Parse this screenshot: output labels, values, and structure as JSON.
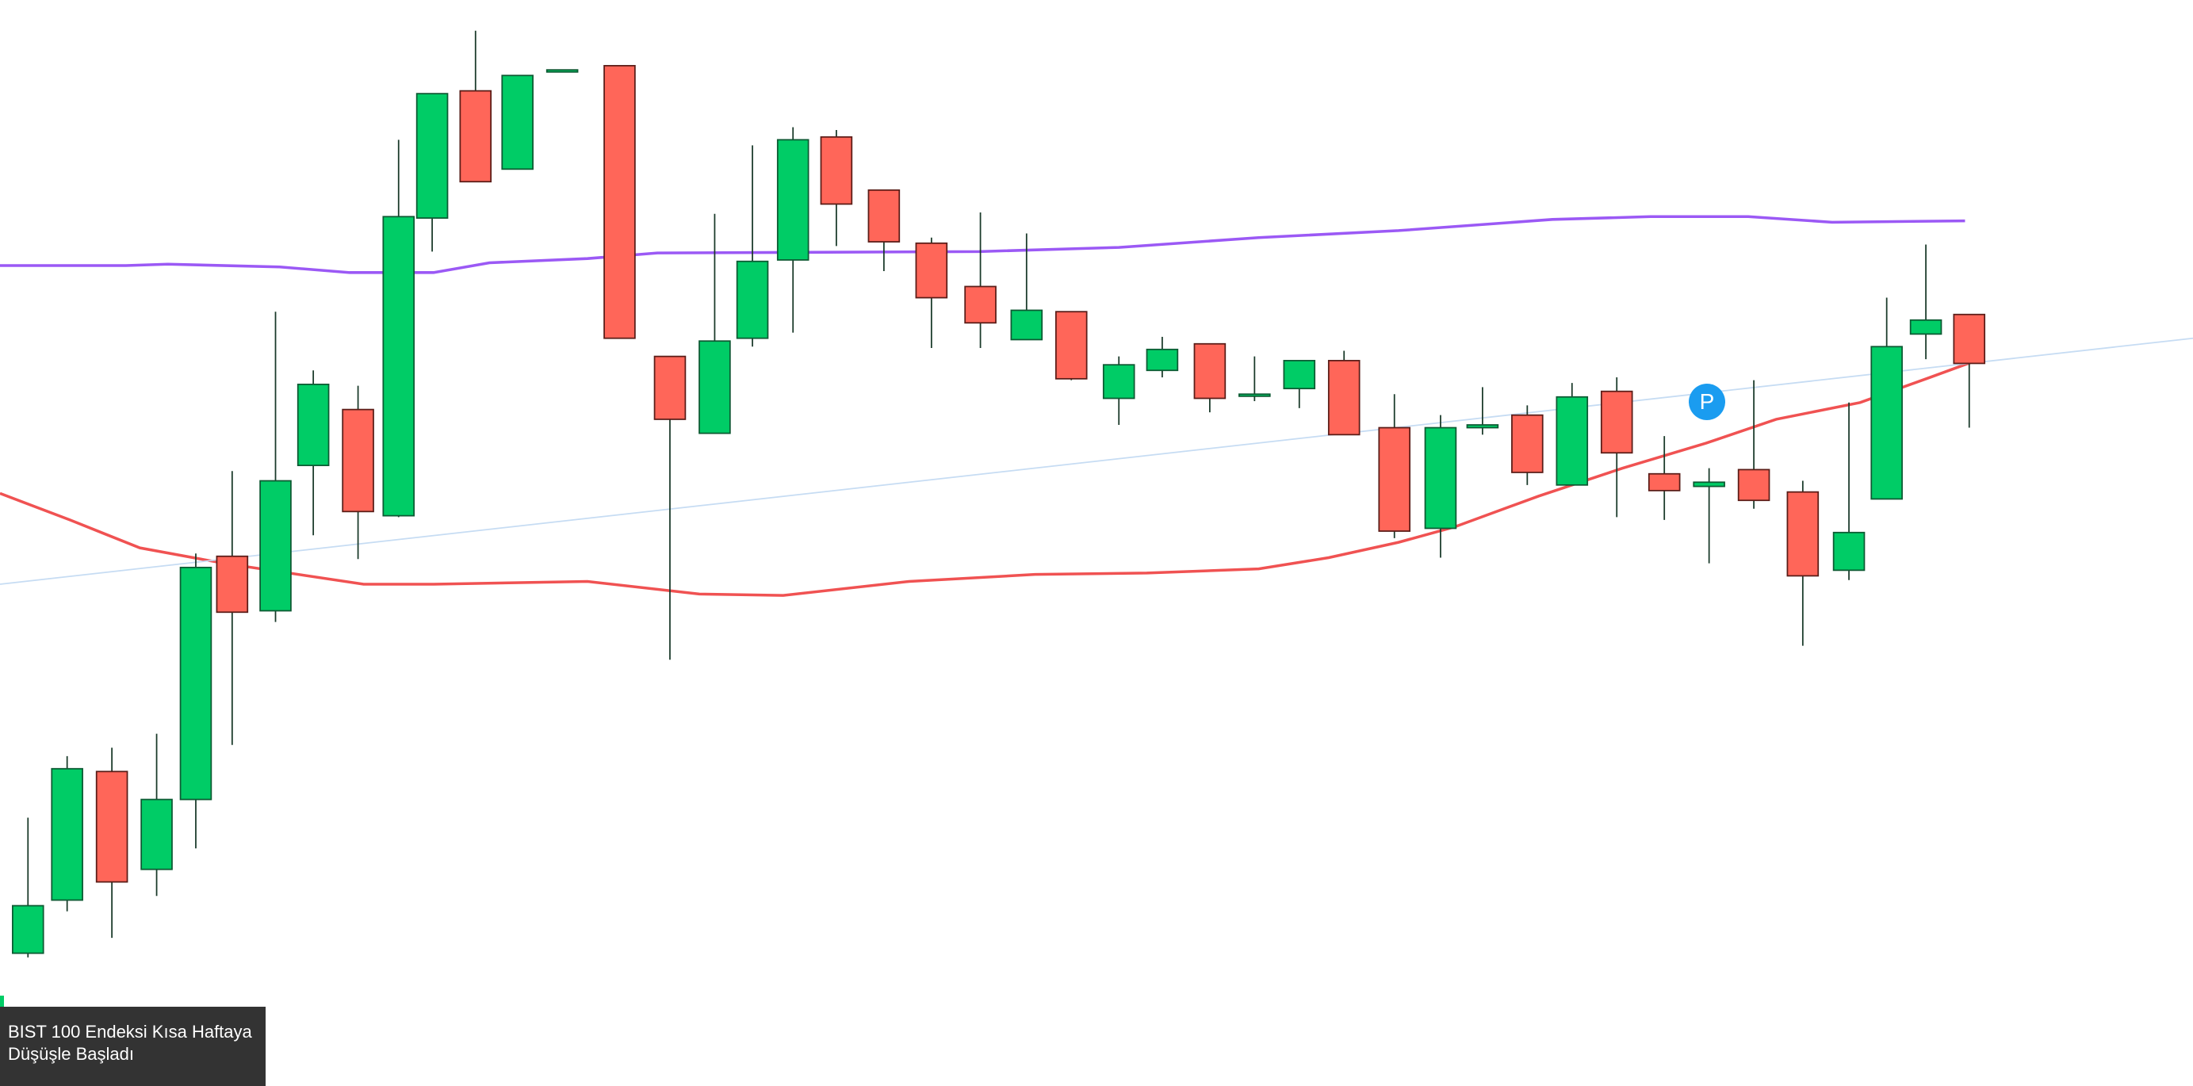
{
  "chart_data": {
    "type": "candlestick",
    "caption": "BIST 100 Endeksi Kısa Haftaya Düşüşle Başladı",
    "marker": "P",
    "xlim": [
      0,
      1568
    ],
    "ylim": [
      0,
      777
    ],
    "up_color": "#00cc66",
    "down_color": "#ff6659",
    "x": [
      20,
      48,
      80,
      112,
      140,
      166,
      197,
      224,
      256,
      285,
      309,
      340,
      370,
      402,
      443,
      479,
      511,
      538,
      567,
      598,
      632,
      666,
      701,
      734,
      766,
      800,
      831,
      865,
      897,
      929,
      961,
      997,
      1030,
      1060,
      1092,
      1124,
      1156,
      1190,
      1222,
      1254,
      1289,
      1322,
      1349,
      1377,
      1408
    ],
    "open": [
      95,
      133,
      225,
      155,
      205,
      379,
      340,
      444,
      484,
      408,
      621,
      712,
      656,
      726,
      730,
      522,
      467,
      535,
      591,
      679,
      641,
      603,
      572,
      534,
      554,
      492,
      512,
      531,
      494,
      499,
      519,
      471,
      399,
      471,
      480,
      430,
      497,
      438,
      429,
      441,
      425,
      369,
      420,
      538,
      552
    ],
    "high": [
      192,
      236,
      242,
      252,
      381,
      440,
      554,
      512,
      501,
      677,
      710,
      755,
      723,
      727,
      730,
      522,
      624,
      673,
      686,
      684,
      641,
      607,
      625,
      610,
      554,
      522,
      536,
      531,
      522,
      519,
      526,
      495,
      480,
      500,
      487,
      503,
      507,
      465,
      442,
      505,
      433,
      489,
      564,
      602,
      552
    ],
    "low": [
      92,
      125,
      106,
      136,
      170,
      244,
      332,
      394,
      377,
      407,
      597,
      647,
      656,
      726,
      535,
      305,
      467,
      529,
      539,
      601,
      583,
      528,
      528,
      534,
      505,
      473,
      507,
      482,
      490,
      485,
      466,
      392,
      378,
      466,
      430,
      430,
      407,
      405,
      374,
      413,
      315,
      362,
      420,
      520,
      471
    ],
    "close": [
      129,
      227,
      146,
      205,
      371,
      339,
      433,
      502,
      411,
      622,
      710,
      647,
      723,
      727,
      535,
      477,
      533,
      590,
      677,
      631,
      604,
      564,
      546,
      555,
      506,
      516,
      527,
      492,
      495,
      519,
      466,
      397,
      471,
      473,
      439,
      493,
      453,
      426,
      432,
      419,
      365,
      396,
      529,
      548,
      517
    ],
    "lines": [
      {
        "color": "#9b59f5",
        "x": [
          0,
          90,
          120,
          200,
          250,
          310,
          350,
          420,
          470,
          700,
          800,
          900,
          1000,
          1110,
          1180,
          1250,
          1310,
          1405
        ],
        "values": [
          587,
          587,
          588,
          586,
          582,
          582,
          589,
          592,
          596,
          597,
          600,
          607,
          612,
          620,
          622,
          622,
          618,
          619
        ]
      },
      {
        "color": "#f05252",
        "x": [
          0,
          50,
          100,
          160,
          260,
          310,
          420,
          500,
          560,
          650,
          740,
          820,
          900,
          950,
          1000,
          1040,
          1100,
          1160,
          1220,
          1270,
          1330,
          1380,
          1410
        ],
        "values": [
          424,
          405,
          385,
          374,
          359,
          359,
          361,
          352,
          351,
          361,
          366,
          367,
          370,
          378,
          389,
          400,
          422,
          442,
          460,
          477,
          489,
          507,
          518
        ]
      },
      {
        "color": "#c6dcf3",
        "x": [
          0,
          1568
        ],
        "values": [
          359,
          535
        ]
      }
    ]
  }
}
